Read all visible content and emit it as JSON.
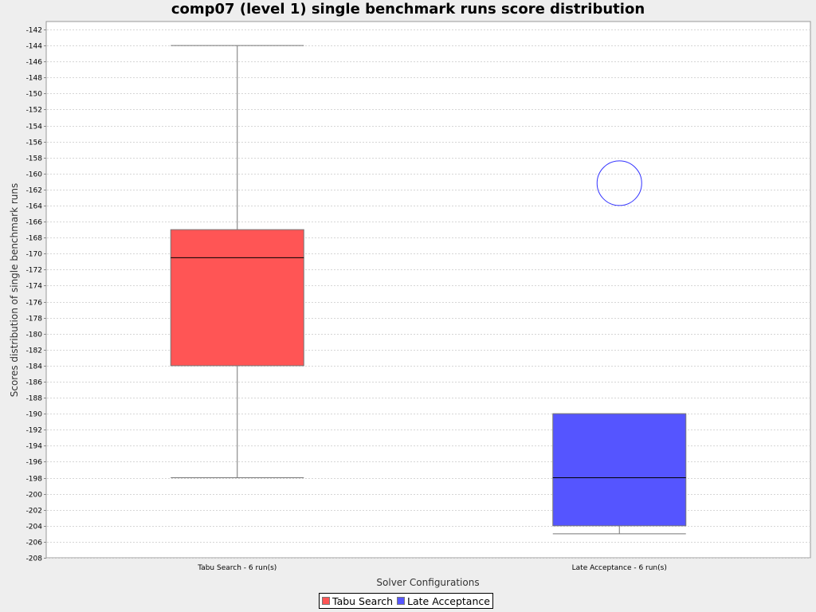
{
  "chart_data": {
    "type": "boxplot",
    "title": "comp07 (level 1) single benchmark runs score distribution",
    "xlabel": "Solver Configurations",
    "ylabel": "Scores distribution of single benchmark runs",
    "ylim": [
      -208,
      -141
    ],
    "yticks": [
      -142,
      -144,
      -146,
      -148,
      -150,
      -152,
      -154,
      -156,
      -158,
      -160,
      -162,
      -164,
      -166,
      -168,
      -170,
      -172,
      -174,
      -176,
      -178,
      -180,
      -182,
      -184,
      -186,
      -188,
      -190,
      -192,
      -194,
      -196,
      -198,
      -200,
      -202,
      -204,
      -206,
      -208
    ],
    "grid": true,
    "legend_position": "bottom-center",
    "categories": [
      "Tabu Search - 6 run(s)",
      "Late Acceptance - 6 run(s)"
    ],
    "series": [
      {
        "name": "Tabu Search",
        "color": "#ff5555",
        "whisker_min": -198,
        "q1": -184,
        "median": -170.5,
        "q3": -167,
        "whisker_max": -144,
        "outliers": []
      },
      {
        "name": "Late Acceptance",
        "color": "#5555ff",
        "whisker_min": -205,
        "q1": -204,
        "median": -198,
        "q3": -190,
        "whisker_max": -190,
        "outliers": [
          -161.2
        ]
      }
    ]
  }
}
